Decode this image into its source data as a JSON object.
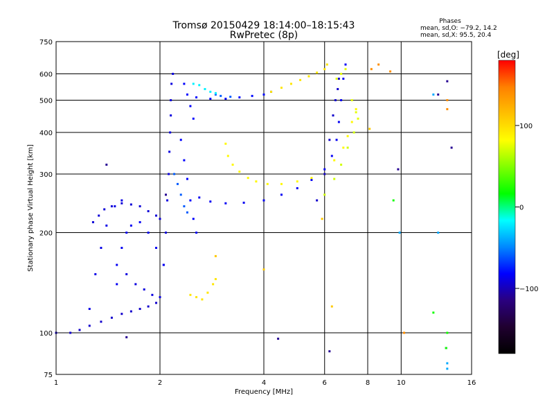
{
  "chart_data": {
    "type": "scatter",
    "title": "Tromsø 20150429 18:14:00–18:15:43",
    "subtitle": "RwPretec (8p)",
    "xlabel": "Frequency [MHz]",
    "ylabel": "Stationary phase Virtual Height [km]",
    "x_scale": "log",
    "y_scale": "log",
    "xlim": [
      1,
      16
    ],
    "ylim": [
      75,
      750
    ],
    "x_ticks": [
      1,
      2,
      4,
      6,
      8,
      10,
      16
    ],
    "x_tick_labels": [
      "1",
      "2",
      "4",
      "6",
      "8",
      "10",
      "16"
    ],
    "y_ticks": [
      75,
      100,
      200,
      300,
      400,
      500,
      600,
      750
    ],
    "y_tick_labels": [
      "75",
      "100",
      "200",
      "300",
      "400",
      "500",
      "600",
      "750"
    ],
    "grid": true,
    "phase_stats": {
      "heading": "Phases",
      "line_o": "mean, sd,O: −79.2, 14.2",
      "line_x": "mean, sd,X:  95.5, 20.4"
    },
    "colorbar": {
      "label": "[deg]",
      "min": -180,
      "max": 180,
      "tick_values": [
        100,
        0,
        -100
      ],
      "tick_labels": [
        "100",
        "0",
        "−100"
      ],
      "colormap": [
        "#000000",
        "#200030",
        "#2a0080",
        "#0000ff",
        "#0088ff",
        "#00ffff",
        "#00ff00",
        "#80ff00",
        "#ffff00",
        "#ffc000",
        "#ff8000",
        "#ff0000"
      ]
    },
    "series": [
      {
        "phase": -95,
        "points": [
          [
            1.0,
            100
          ],
          [
            1.1,
            100
          ],
          [
            1.17,
            102
          ],
          [
            1.25,
            105
          ],
          [
            1.35,
            108
          ],
          [
            1.45,
            111
          ],
          [
            1.55,
            114
          ],
          [
            1.65,
            116
          ],
          [
            1.75,
            118
          ],
          [
            1.85,
            120
          ],
          [
            1.95,
            123
          ]
        ]
      },
      {
        "phase": -88,
        "points": [
          [
            1.25,
            118
          ],
          [
            1.3,
            150
          ],
          [
            1.35,
            180
          ],
          [
            1.4,
            210
          ],
          [
            1.48,
            240
          ],
          [
            1.55,
            250
          ]
        ]
      },
      {
        "phase": -92,
        "points": [
          [
            1.28,
            215
          ],
          [
            1.33,
            225
          ],
          [
            1.38,
            235
          ],
          [
            1.45,
            240
          ],
          [
            1.55,
            245
          ],
          [
            1.65,
            243
          ],
          [
            1.75,
            240
          ],
          [
            1.85,
            232
          ],
          [
            1.95,
            225
          ],
          [
            2.0,
            220
          ]
        ]
      },
      {
        "phase": -90,
        "points": [
          [
            1.6,
            150
          ],
          [
            1.7,
            140
          ],
          [
            1.8,
            135
          ],
          [
            1.9,
            130
          ],
          [
            2.0,
            128
          ],
          [
            2.05,
            160
          ],
          [
            2.08,
            200
          ],
          [
            2.1,
            250
          ],
          [
            2.12,
            300
          ],
          [
            2.13,
            350
          ],
          [
            2.14,
            400
          ],
          [
            2.15,
            450
          ],
          [
            2.15,
            500
          ],
          [
            2.16,
            560
          ],
          [
            2.18,
            600
          ]
        ]
      },
      {
        "phase": -85,
        "points": [
          [
            1.5,
            140
          ],
          [
            1.5,
            160
          ],
          [
            1.55,
            180
          ],
          [
            1.6,
            200
          ],
          [
            1.65,
            210
          ],
          [
            1.75,
            215
          ],
          [
            1.85,
            200
          ],
          [
            1.95,
            180
          ],
          [
            2.05,
            160
          ]
        ]
      },
      {
        "phase": -82,
        "points": [
          [
            2.3,
            380
          ],
          [
            2.35,
            330
          ],
          [
            2.4,
            290
          ],
          [
            2.45,
            250
          ],
          [
            2.5,
            220
          ],
          [
            2.55,
            200
          ],
          [
            2.35,
            560
          ],
          [
            2.4,
            520
          ],
          [
            2.45,
            480
          ],
          [
            2.5,
            440
          ]
        ]
      },
      {
        "phase": -80,
        "points": [
          [
            2.55,
            510
          ],
          [
            2.8,
            505
          ],
          [
            3.1,
            505
          ],
          [
            3.4,
            510
          ],
          [
            3.7,
            515
          ],
          [
            4.0,
            520
          ],
          [
            4.2,
            530
          ]
        ]
      },
      {
        "phase": 95,
        "points": [
          [
            4.2,
            530
          ],
          [
            4.5,
            545
          ],
          [
            4.8,
            560
          ],
          [
            5.1,
            575
          ],
          [
            5.4,
            590
          ],
          [
            5.7,
            605
          ],
          [
            6.0,
            620
          ],
          [
            6.1,
            640
          ]
        ]
      },
      {
        "phase": -85,
        "points": [
          [
            2.6,
            255
          ],
          [
            2.8,
            248
          ],
          [
            3.1,
            245
          ],
          [
            3.5,
            246
          ],
          [
            4.0,
            250
          ],
          [
            4.5,
            260
          ],
          [
            5.0,
            272
          ],
          [
            5.5,
            288
          ],
          [
            6.0,
            310
          ],
          [
            6.3,
            340
          ],
          [
            6.5,
            380
          ],
          [
            6.6,
            430
          ],
          [
            6.7,
            500
          ],
          [
            6.8,
            580
          ],
          [
            6.9,
            640
          ]
        ]
      },
      {
        "phase": 85,
        "points": [
          [
            3.1,
            370
          ],
          [
            3.15,
            340
          ],
          [
            3.25,
            320
          ],
          [
            3.4,
            305
          ],
          [
            3.6,
            292
          ],
          [
            3.8,
            285
          ],
          [
            4.1,
            280
          ],
          [
            4.5,
            280
          ],
          [
            5.0,
            285
          ],
          [
            5.5,
            292
          ],
          [
            6.0,
            300
          ],
          [
            6.4,
            330
          ],
          [
            6.8,
            360
          ],
          [
            7.0,
            390
          ],
          [
            7.2,
            430
          ],
          [
            7.4,
            470
          ]
        ]
      },
      {
        "phase": -95,
        "points": [
          [
            5.7,
            250
          ],
          [
            6.0,
            300
          ],
          [
            6.2,
            380
          ],
          [
            6.35,
            450
          ],
          [
            6.45,
            500
          ],
          [
            6.55,
            540
          ],
          [
            6.6,
            580
          ]
        ]
      },
      {
        "phase": 95,
        "points": [
          [
            2.45,
            130
          ],
          [
            2.55,
            128
          ],
          [
            2.65,
            126
          ],
          [
            2.75,
            132
          ],
          [
            2.85,
            140
          ],
          [
            2.9,
            145
          ]
        ]
      },
      {
        "phase": 75,
        "points": [
          [
            6.5,
            580
          ],
          [
            6.7,
            600
          ],
          [
            6.9,
            620
          ],
          [
            7.2,
            500
          ],
          [
            7.4,
            460
          ],
          [
            7.5,
            440
          ]
        ]
      },
      {
        "phase": 70,
        "points": [
          [
            6.0,
            260
          ],
          [
            6.4,
            290
          ],
          [
            6.7,
            320
          ],
          [
            7.0,
            360
          ],
          [
            7.3,
            400
          ]
        ]
      },
      {
        "phase": -60,
        "points": [
          [
            2.2,
            300
          ],
          [
            2.25,
            280
          ],
          [
            2.3,
            260
          ],
          [
            2.35,
            240
          ],
          [
            2.4,
            230
          ],
          [
            2.9,
            520
          ],
          [
            3.0,
            515
          ],
          [
            3.2,
            512
          ]
        ]
      },
      {
        "phase": -20,
        "points": [
          [
            2.5,
            560
          ],
          [
            2.6,
            555
          ],
          [
            2.7,
            540
          ],
          [
            2.8,
            530
          ],
          [
            2.9,
            525
          ]
        ]
      },
      {
        "phase": 140,
        "points": [
          [
            8.2,
            620
          ],
          [
            8.6,
            640
          ],
          [
            9.3,
            610
          ],
          [
            10.2,
            100
          ],
          [
            13.6,
            500
          ],
          [
            13.6,
            470
          ]
        ]
      },
      {
        "phase": -110,
        "points": [
          [
            1.4,
            320
          ],
          [
            1.6,
            97
          ],
          [
            2.08,
            260
          ],
          [
            4.4,
            96
          ],
          [
            6.2,
            88
          ],
          [
            9.8,
            310
          ],
          [
            13.5,
            90
          ],
          [
            13.6,
            570
          ],
          [
            14.0,
            360
          ],
          [
            12.8,
            520
          ]
        ]
      },
      {
        "phase": 20,
        "points": [
          [
            13.6,
            100
          ],
          [
            9.5,
            250
          ],
          [
            12.4,
            115
          ],
          [
            13.5,
            90
          ]
        ]
      },
      {
        "phase": 110,
        "points": [
          [
            2.9,
            170
          ],
          [
            4.0,
            155
          ],
          [
            6.3,
            120
          ],
          [
            5.9,
            220
          ],
          [
            8.1,
            410
          ]
        ]
      },
      {
        "phase": -40,
        "points": [
          [
            13.6,
            81
          ],
          [
            13.6,
            78
          ],
          [
            12.4,
            520
          ],
          [
            9.9,
            200
          ],
          [
            12.8,
            200
          ]
        ]
      }
    ]
  }
}
